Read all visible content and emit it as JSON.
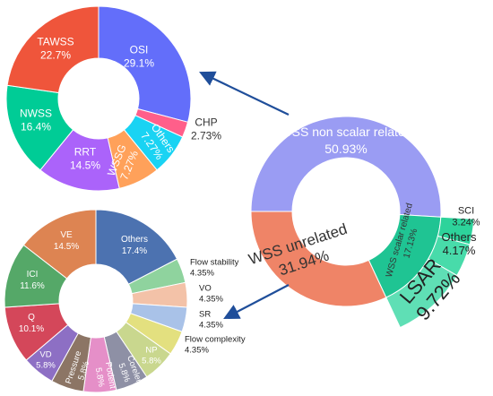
{
  "chart_data": [
    {
      "type": "pie",
      "title": "",
      "slices": [
        {
          "label": "WSS non scalar related",
          "value": 50.93,
          "value_text": "50.93%",
          "color": "#9a9cf3"
        },
        {
          "label": "WSS scalar related",
          "value": 17.13,
          "value_text": "17.13%",
          "color": "#1fc493"
        },
        {
          "label": "WSS unrelated",
          "value": 31.94,
          "value_text": "31.94%",
          "color": "#ef8467"
        }
      ],
      "outer_ring": [
        {
          "label": "SCI",
          "value": 3.24,
          "value_text": "3.24%",
          "color": "#2dd39b"
        },
        {
          "label": "Others",
          "value": 4.17,
          "value_text": "4.17%",
          "color": "#48dbaa"
        },
        {
          "label": "LSAR",
          "value": 9.72,
          "value_text": "9.72%",
          "color": "#5fdfb5"
        }
      ]
    },
    {
      "type": "pie",
      "title": "",
      "slices": [
        {
          "label": "OSI",
          "value": 29.1,
          "value_text": "29.1%",
          "color": "#636efa"
        },
        {
          "label": "CHP",
          "value": 2.73,
          "value_text": "2.73%",
          "color": "#ff5f8a"
        },
        {
          "label": "Others",
          "value": 7.27,
          "value_text": "7.27%",
          "color": "#19d3f3"
        },
        {
          "label": "WSSG",
          "value": 7.27,
          "value_text": "7.27%",
          "color": "#ffa15a"
        },
        {
          "label": "RRT",
          "value": 14.5,
          "value_text": "14.5%",
          "color": "#ab63fa"
        },
        {
          "label": "NWSS",
          "value": 16.4,
          "value_text": "16.4%",
          "color": "#00cc96"
        },
        {
          "label": "TAWSS",
          "value": 22.7,
          "value_text": "22.7%",
          "color": "#ef553b"
        }
      ]
    },
    {
      "type": "pie",
      "title": "",
      "slices": [
        {
          "label": "Others",
          "value": 17.4,
          "value_text": "17.4%",
          "color": "#4c72b0"
        },
        {
          "label": "Flow stability",
          "value": 4.35,
          "value_text": "4.35%",
          "color": "#8fd39e"
        },
        {
          "label": "VO",
          "value": 4.35,
          "value_text": "4.35%",
          "color": "#f3c2a8"
        },
        {
          "label": "SR",
          "value": 4.35,
          "value_text": "4.35%",
          "color": "#a9c2e8"
        },
        {
          "label": "Flow complexity",
          "value": 4.35,
          "value_text": "4.35%",
          "color": "#e3e07f"
        },
        {
          "label": "NP",
          "value": 5.8,
          "value_text": "5.8%",
          "color": "#c9d78e"
        },
        {
          "label": "Coreler",
          "value": 5.8,
          "value_text": "5.8%",
          "color": "#8e90a5"
        },
        {
          "label": "Podent",
          "value": 5.8,
          "value_text": "5.8%",
          "color": "#e58fc8"
        },
        {
          "label": "Pressure",
          "value": 5.8,
          "value_text": "5.8%",
          "color": "#8c7565"
        },
        {
          "label": "VD",
          "value": 5.8,
          "value_text": "5.8%",
          "color": "#8d6fc4"
        },
        {
          "label": "Q",
          "value": 10.1,
          "value_text": "10.1%",
          "color": "#d4475a"
        },
        {
          "label": "ICI",
          "value": 11.6,
          "value_text": "11.6%",
          "color": "#55a868"
        },
        {
          "label": "VE",
          "value": 14.5,
          "value_text": "14.5%",
          "color": "#dd8452"
        }
      ]
    }
  ],
  "arrow_color": "#1f4e9a"
}
